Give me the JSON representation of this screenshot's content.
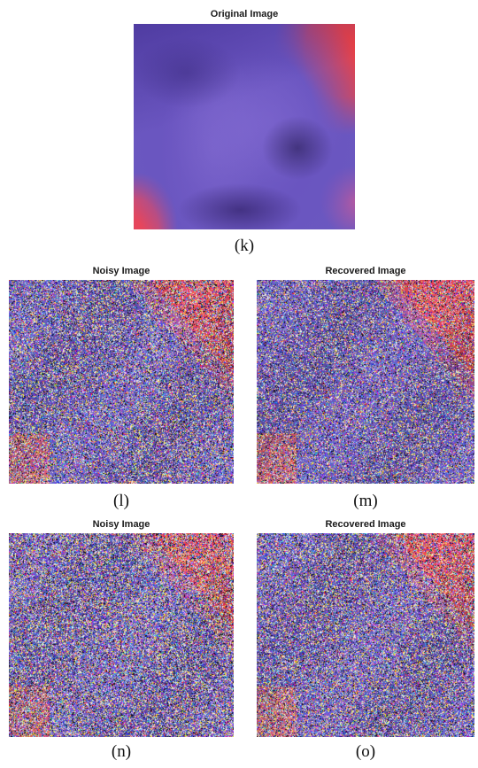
{
  "figure": {
    "panels": [
      {
        "id": "k",
        "title": "Original Image",
        "caption": "(k)"
      },
      {
        "id": "l",
        "title": "Noisy Image",
        "caption": "(l)"
      },
      {
        "id": "m",
        "title": "Recovered Image",
        "caption": "(m)"
      },
      {
        "id": "n",
        "title": "Noisy Image",
        "caption": "(n)"
      },
      {
        "id": "o",
        "title": "Recovered Image",
        "caption": "(o)"
      }
    ]
  },
  "colors": {
    "smoke": "#6b58c0",
    "background_red": "#ee4545",
    "caption_text": "#111111"
  }
}
